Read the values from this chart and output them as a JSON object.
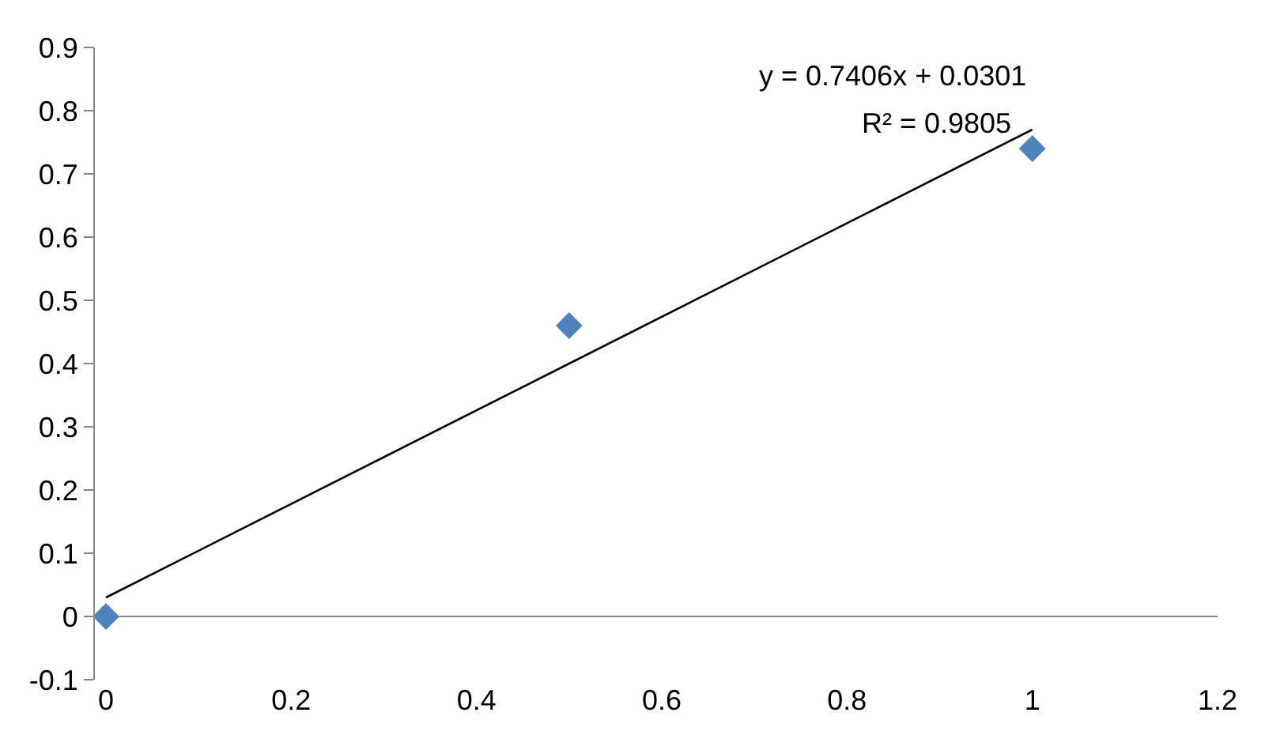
{
  "chart_data": {
    "type": "scatter",
    "xlim": [
      -0.0,
      1.2
    ],
    "xticks": [
      0,
      0.2,
      0.4,
      0.6,
      0.8,
      1,
      1.2
    ],
    "ylim": [
      -0.1,
      0.9
    ],
    "yticks": [
      -0.1,
      0,
      0.1,
      0.2,
      0.3,
      0.4,
      0.5,
      0.6,
      0.7,
      0.8,
      0.9
    ],
    "marker": "diamond",
    "series": [
      {
        "color": "#4f81bd",
        "x": [
          0,
          0.5,
          1
        ],
        "values": [
          0,
          0.46,
          0.74
        ]
      },
      {
        "type": "line",
        "color": "#000000",
        "x": [
          0,
          1
        ],
        "values": [
          0.03,
          0.77
        ],
        "marker": "none",
        "line_style": "solid"
      }
    ],
    "annotations": [
      "y = 0.7406x + 0.0301",
      "R² = 0.9805"
    ]
  }
}
